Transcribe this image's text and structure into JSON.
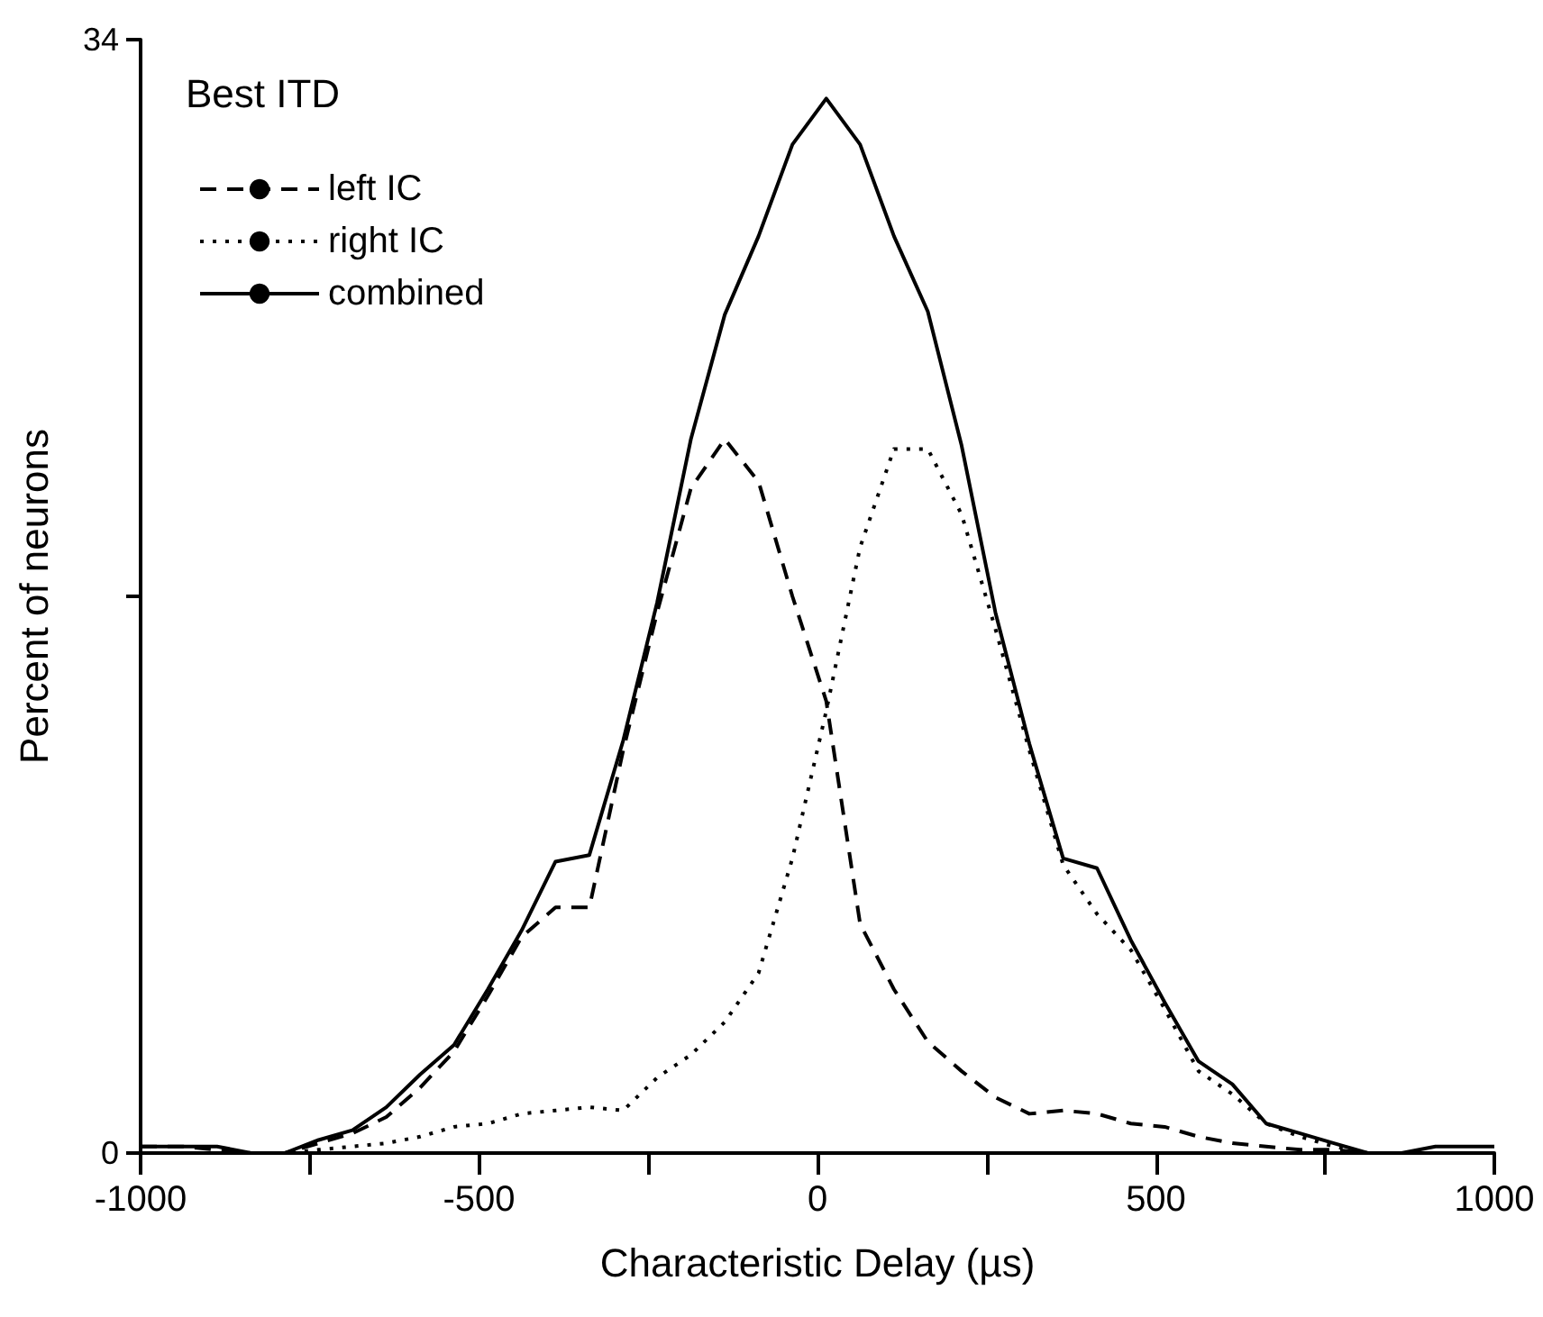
{
  "chart_data": {
    "type": "line",
    "title": "Best ITD",
    "xlabel": "Characteristic Delay (µs)",
    "ylabel": "Percent of neurons",
    "x": [
      -1000,
      -937,
      -887,
      -837,
      -787,
      -737,
      -687,
      -637,
      -587,
      -537,
      -487,
      -437,
      -387,
      -337,
      -287,
      -237,
      -187,
      -137,
      -87,
      -37,
      13,
      63,
      113,
      163,
      213,
      263,
      313,
      363,
      413,
      463,
      513,
      563,
      613,
      663,
      713,
      763,
      813,
      863,
      913,
      963,
      1000
    ],
    "series": [
      {
        "name": "left IC",
        "color": "#000000",
        "line_style": "dashed",
        "values": [
          0.2,
          0.2,
          0.1,
          0,
          0,
          0.3,
          0.6,
          1.1,
          2.0,
          3.1,
          4.8,
          6.6,
          7.5,
          7.5,
          12.3,
          16.5,
          20.3,
          21.8,
          20.5,
          17,
          13.8,
          7,
          5.0,
          3.4,
          2.5,
          1.7,
          1.2,
          1.3,
          1.2,
          0.9,
          0.8,
          0.5,
          0.3,
          0.2,
          0.1,
          0.1,
          0,
          0,
          0,
          0,
          0
        ]
      },
      {
        "name": "right IC",
        "color": "#000000",
        "line_style": "dotted",
        "values": [
          0,
          0,
          0,
          0,
          0,
          0.1,
          0.2,
          0.3,
          0.5,
          0.8,
          0.9,
          1.2,
          1.3,
          1.4,
          1.3,
          2.3,
          3.0,
          4.0,
          5.5,
          9,
          13.5,
          18.5,
          21.5,
          21.5,
          19.5,
          16.0,
          12.3,
          8.8,
          7.3,
          6.2,
          4.4,
          2.5,
          1.8,
          0.9,
          0.5,
          0.2,
          0,
          0,
          0,
          0,
          0
        ]
      },
      {
        "name": "combined",
        "color": "#000000",
        "line_style": "solid",
        "values": [
          0.2,
          0.2,
          0.2,
          0,
          0,
          0.4,
          0.7,
          1.4,
          2.4,
          3.3,
          5.0,
          6.8,
          8.9,
          9.1,
          12.6,
          16.8,
          21.8,
          25.6,
          28.0,
          30.8,
          32.2,
          30.8,
          28.0,
          25.7,
          21.6,
          16.5,
          12.5,
          9.0,
          8.7,
          6.5,
          4.6,
          2.8,
          2.1,
          0.9,
          0.6,
          0.3,
          0,
          0,
          0.2,
          0.2,
          0.2
        ]
      }
    ],
    "xlim": [
      -1000,
      1000
    ],
    "xticks": [
      -1000,
      {
        "value": -750,
        "label": null
      },
      -500,
      {
        "value": -250,
        "label": null
      },
      0,
      {
        "value": 250,
        "label": null
      },
      500,
      {
        "value": 750,
        "label": null
      },
      1000
    ],
    "ylim": [
      0,
      34
    ],
    "yticks": [
      0,
      {
        "value": 17,
        "label": null
      },
      34
    ],
    "grid": false,
    "legend": "top left",
    "marker": "none"
  }
}
